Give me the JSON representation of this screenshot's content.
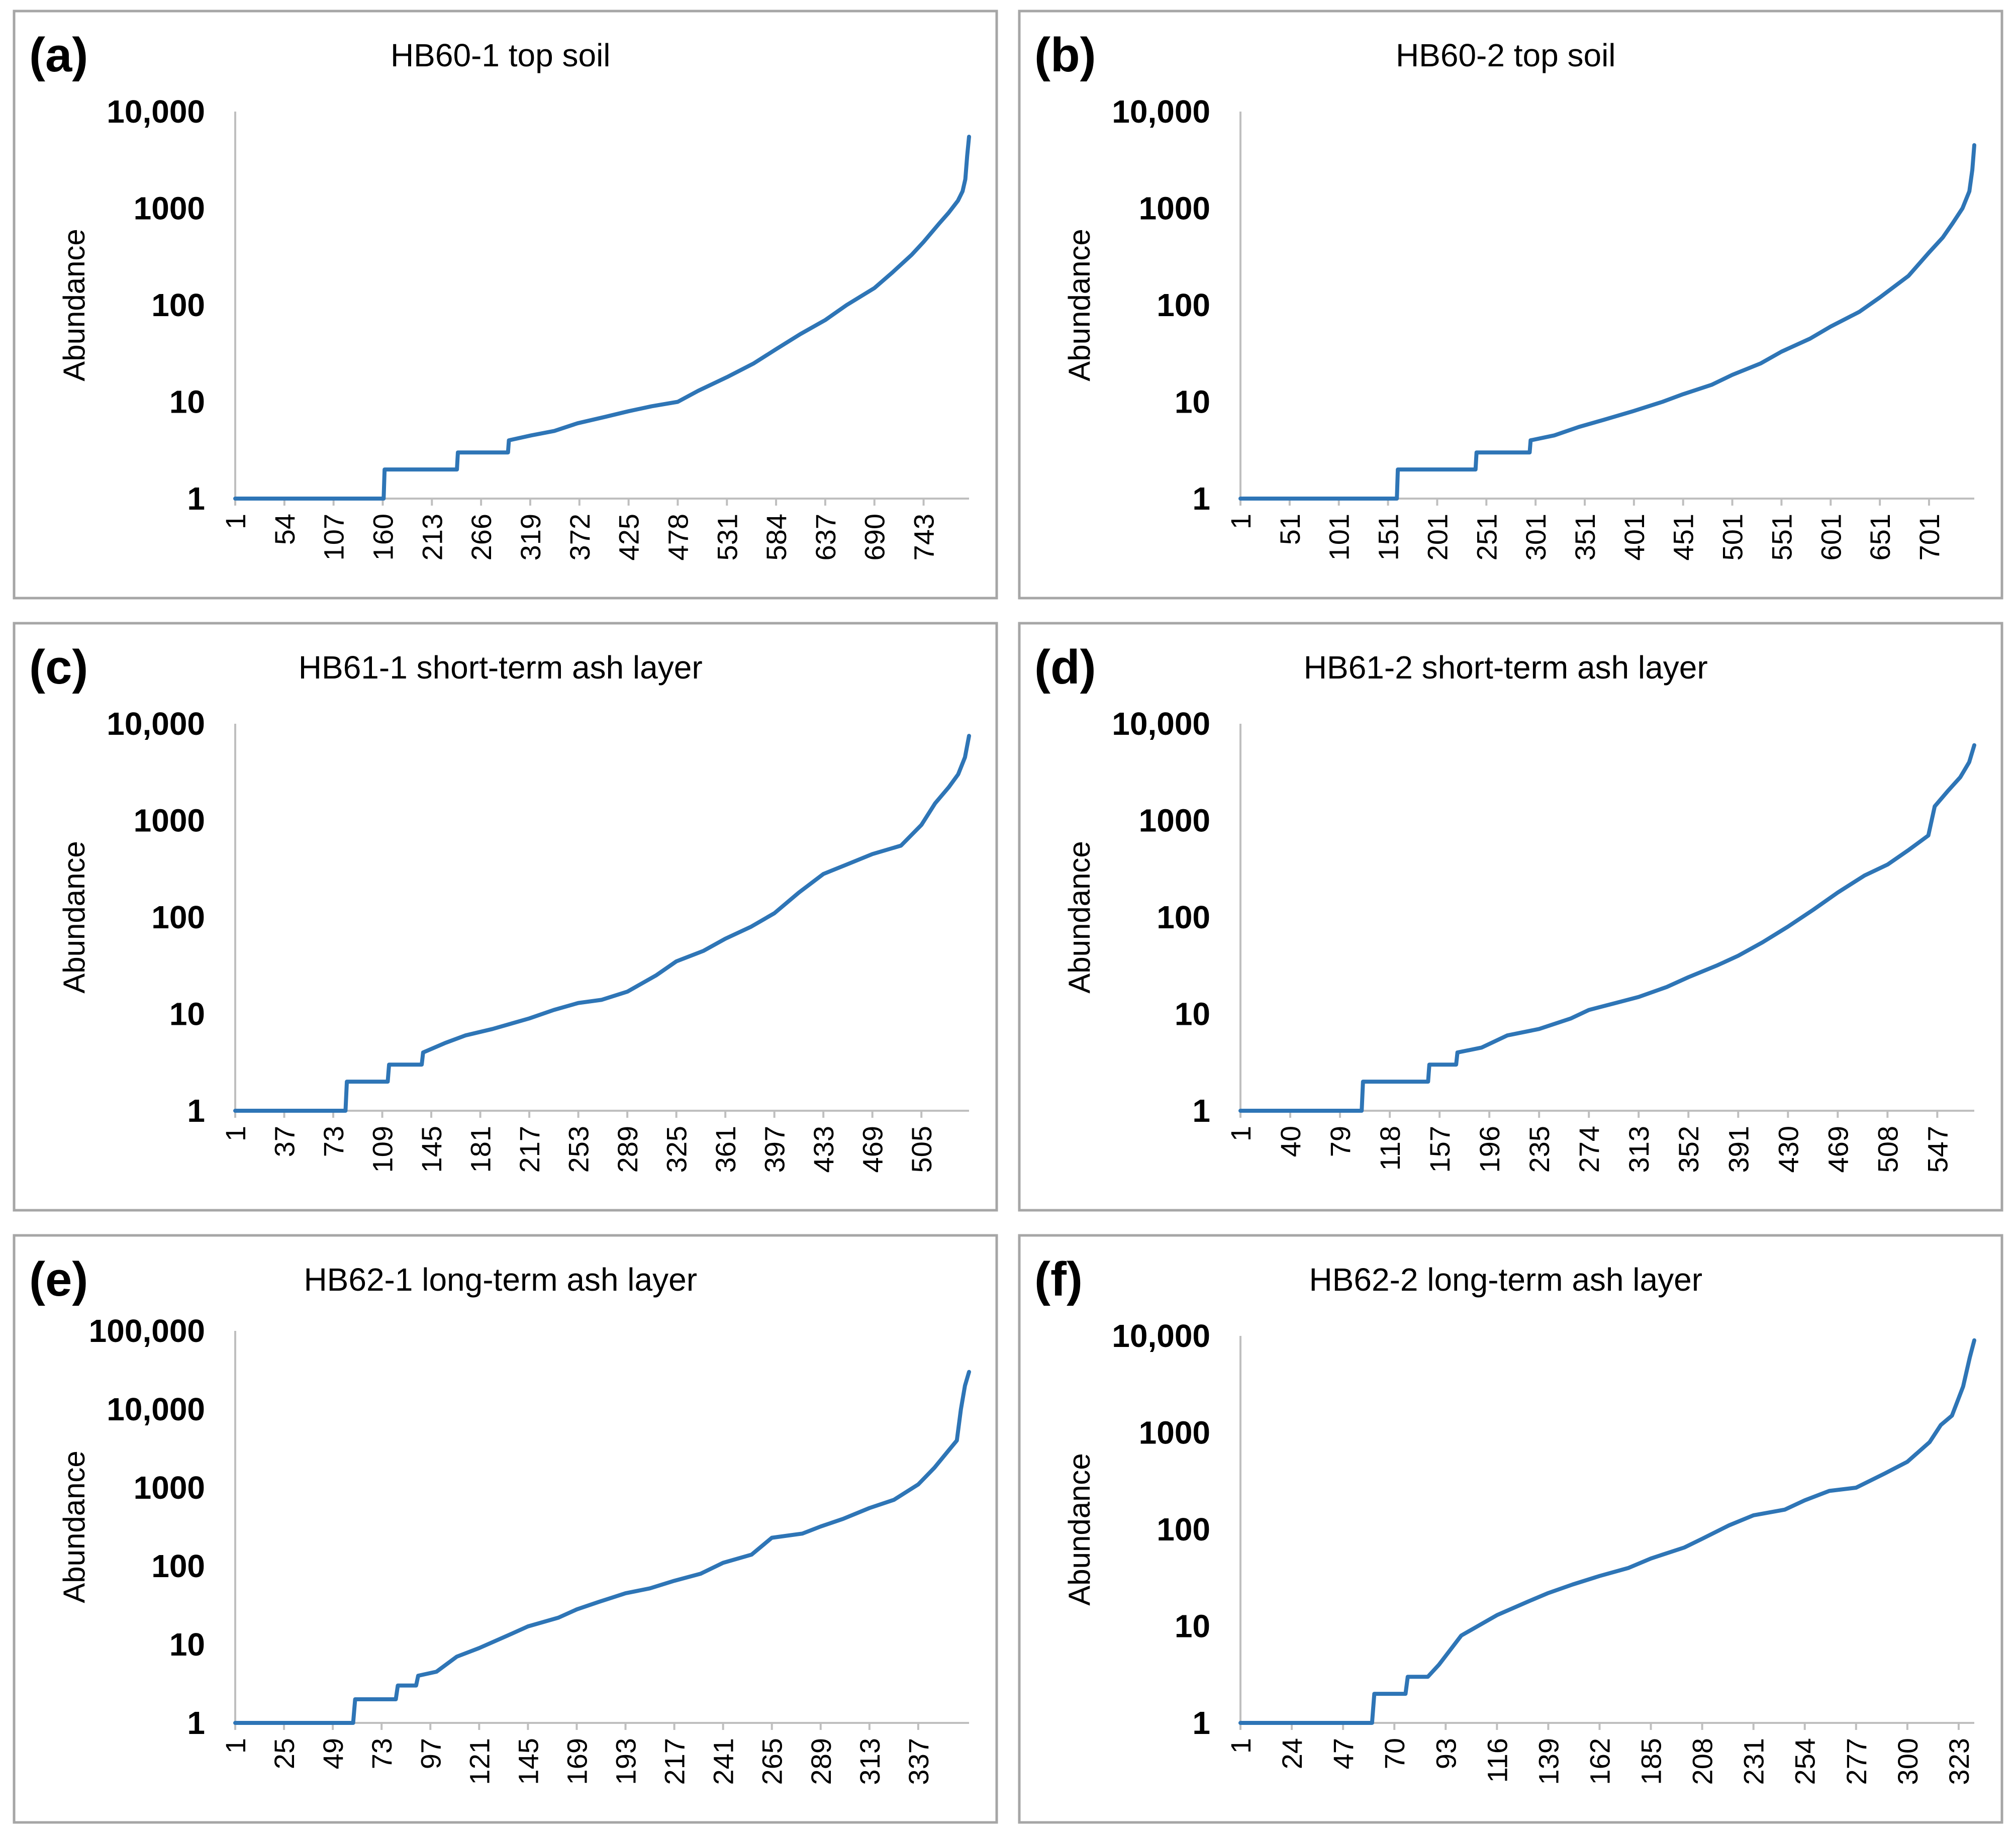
{
  "chart_data": [
    {
      "type": "line",
      "panel": "(a)",
      "title": "HB60-1 top soil",
      "ylabel": "Abundance",
      "xlabel": "",
      "y_scale": "log",
      "ylim": [
        1,
        10000
      ],
      "y_ticks": [
        "1",
        "10",
        "100",
        "1000",
        "10,000"
      ],
      "x_ticks": [
        "1",
        "54",
        "107",
        "160",
        "213",
        "266",
        "319",
        "372",
        "425",
        "478",
        "531",
        "584",
        "637",
        "690",
        "743"
      ],
      "xlim": [
        1,
        792
      ],
      "series": [
        {
          "color": "#2E75B6",
          "x": [
            1,
            161,
            162,
            240,
            241,
            295,
            296,
            320,
            345,
            370,
            400,
            425,
            450,
            478,
            500,
            531,
            560,
            584,
            610,
            637,
            660,
            690,
            710,
            730,
            743,
            760,
            770,
            780,
            785,
            788,
            790,
            792
          ],
          "y": [
            1,
            1,
            2,
            2,
            3,
            3,
            4,
            4.5,
            5,
            6,
            7,
            8,
            9,
            10,
            13,
            18,
            25,
            35,
            50,
            70,
            100,
            150,
            220,
            330,
            450,
            700,
            900,
            1200,
            1500,
            2000,
            3500,
            5500
          ]
        }
      ]
    },
    {
      "type": "line",
      "panel": "(b)",
      "title": "HB60-2 top soil",
      "ylabel": "Abundance",
      "xlabel": "",
      "y_scale": "log",
      "ylim": [
        1,
        10000
      ],
      "y_ticks": [
        "1",
        "10",
        "100",
        "1000",
        "10,000"
      ],
      "x_ticks": [
        "1",
        "51",
        "101",
        "151",
        "201",
        "251",
        "301",
        "351",
        "401",
        "451",
        "501",
        "551",
        "601",
        "651",
        "701"
      ],
      "xlim": [
        1,
        747
      ],
      "series": [
        {
          "color": "#2E75B6",
          "x": [
            1,
            160,
            161,
            240,
            241,
            295,
            296,
            320,
            345,
            370,
            400,
            430,
            451,
            480,
            501,
            530,
            551,
            580,
            601,
            630,
            651,
            680,
            701,
            715,
            725,
            735,
            742,
            745,
            747
          ],
          "y": [
            1,
            1,
            2,
            2,
            3,
            3,
            4,
            4.5,
            5.5,
            6.5,
            8,
            10,
            12,
            15,
            19,
            25,
            33,
            45,
            60,
            85,
            120,
            200,
            350,
            500,
            700,
            1000,
            1500,
            2500,
            4500
          ]
        }
      ]
    },
    {
      "type": "line",
      "panel": "(c)",
      "title": "HB61-1 short-term ash layer",
      "ylabel": "Abundance",
      "xlabel": "",
      "y_scale": "log",
      "ylim": [
        1,
        10000
      ],
      "y_ticks": [
        "1",
        "10",
        "100",
        "1000",
        "10,000"
      ],
      "x_ticks": [
        "1",
        "37",
        "73",
        "109",
        "145",
        "181",
        "217",
        "253",
        "289",
        "325",
        "361",
        "397",
        "433",
        "469",
        "505"
      ],
      "xlim": [
        1,
        540
      ],
      "series": [
        {
          "color": "#2E75B6",
          "x": [
            1,
            82,
            83,
            113,
            114,
            138,
            139,
            155,
            170,
            190,
            217,
            235,
            253,
            270,
            289,
            310,
            325,
            345,
            361,
            380,
            397,
            415,
            433,
            450,
            469,
            490,
            505,
            515,
            525,
            532,
            537,
            540
          ],
          "y": [
            1,
            1,
            2,
            2,
            3,
            3,
            4,
            5,
            6,
            7,
            9,
            11,
            13,
            14,
            17,
            25,
            35,
            45,
            60,
            80,
            110,
            180,
            280,
            350,
            450,
            550,
            900,
            1500,
            2200,
            3000,
            4500,
            7500
          ]
        }
      ]
    },
    {
      "type": "line",
      "panel": "(d)",
      "title": "HB61-2 short-term ash layer",
      "ylabel": "Abundance",
      "xlabel": "",
      "y_scale": "log",
      "ylim": [
        1,
        10000
      ],
      "y_ticks": [
        "1",
        "10",
        "100",
        "1000",
        "10,000"
      ],
      "x_ticks": [
        "1",
        "40",
        "79",
        "118",
        "157",
        "196",
        "235",
        "274",
        "313",
        "352",
        "391",
        "430",
        "469",
        "508",
        "547"
      ],
      "xlim": [
        1,
        576
      ],
      "series": [
        {
          "color": "#2E75B6",
          "x": [
            1,
            96,
            97,
            148,
            149,
            170,
            171,
            190,
            210,
            235,
            260,
            274,
            295,
            313,
            335,
            352,
            375,
            391,
            410,
            430,
            450,
            469,
            490,
            508,
            525,
            540,
            545,
            555,
            565,
            572,
            576
          ],
          "y": [
            1,
            1,
            2,
            2,
            3,
            3,
            4,
            4.5,
            6,
            7,
            9,
            11,
            13,
            15,
            19,
            24,
            32,
            40,
            55,
            80,
            120,
            180,
            270,
            350,
            500,
            700,
            1400,
            2000,
            2800,
            4000,
            6000
          ]
        }
      ]
    },
    {
      "type": "line",
      "panel": "(e)",
      "title": "HB62-1 long-term ash layer",
      "ylabel": "Abundance",
      "xlabel": "",
      "y_scale": "log",
      "ylim": [
        1,
        100000
      ],
      "y_ticks": [
        "1",
        "10",
        "100",
        "1000",
        "10,000",
        "100,000"
      ],
      "x_ticks": [
        "1",
        "25",
        "49",
        "73",
        "97",
        "121",
        "145",
        "169",
        "193",
        "217",
        "241",
        "265",
        "289",
        "313",
        "337"
      ],
      "xlim": [
        1,
        362
      ],
      "series": [
        {
          "color": "#2E75B6",
          "x": [
            1,
            59,
            60,
            80,
            81,
            90,
            91,
            100,
            110,
            121,
            135,
            145,
            160,
            169,
            180,
            193,
            205,
            217,
            230,
            241,
            255,
            265,
            280,
            289,
            300,
            313,
            325,
            337,
            345,
            352,
            356,
            358,
            360,
            362
          ],
          "y": [
            1,
            1,
            2,
            2,
            3,
            3,
            4,
            4.5,
            7,
            9,
            13,
            17,
            22,
            28,
            35,
            45,
            52,
            65,
            80,
            110,
            140,
            230,
            260,
            320,
            400,
            550,
            700,
            1100,
            1800,
            3000,
            4000,
            10000,
            20000,
            30000
          ]
        }
      ]
    },
    {
      "type": "line",
      "panel": "(f)",
      "title": "HB62-2 long-term ash layer",
      "ylabel": "Abundance",
      "xlabel": "",
      "y_scale": "log",
      "ylim": [
        1,
        10000
      ],
      "y_ticks": [
        "1",
        "10",
        "100",
        "1000",
        "10,000"
      ],
      "x_ticks": [
        "1",
        "24",
        "47",
        "70",
        "93",
        "116",
        "139",
        "162",
        "185",
        "208",
        "231",
        "254",
        "277",
        "300",
        "323"
      ],
      "xlim": [
        1,
        330
      ],
      "series": [
        {
          "color": "#2E75B6",
          "x": [
            1,
            60,
            61,
            75,
            76,
            85,
            90,
            100,
            116,
            130,
            139,
            150,
            162,
            175,
            185,
            200,
            208,
            220,
            231,
            245,
            254,
            265,
            277,
            290,
            300,
            310,
            315,
            320,
            325,
            328,
            330
          ],
          "y": [
            1,
            1,
            2,
            2,
            3,
            3,
            4,
            8,
            13,
            18,
            22,
            27,
            33,
            40,
            50,
            65,
            80,
            110,
            140,
            160,
            200,
            250,
            270,
            380,
            500,
            800,
            1200,
            1500,
            3000,
            6000,
            9000
          ]
        }
      ]
    }
  ]
}
